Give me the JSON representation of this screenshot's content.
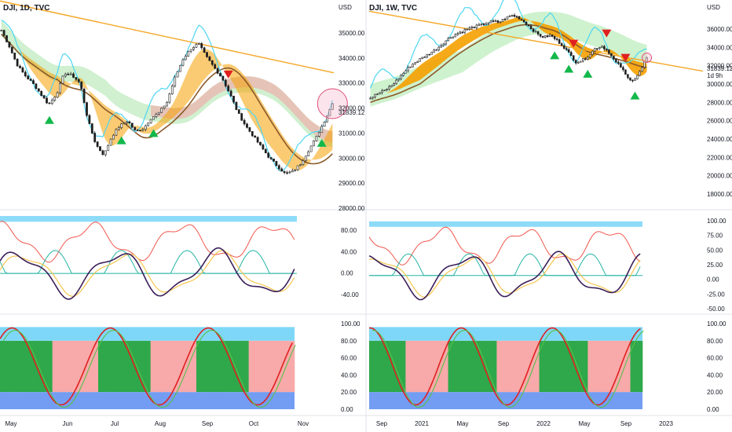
{
  "colors": {
    "bull": "#089981",
    "bear": "#d12a2a",
    "trend": "#f5a623",
    "ema_fast": "#f7a600",
    "ema_slow": "#8b5a2b",
    "cyan": "#4dd6f2",
    "cloud_green": "#9be59b",
    "cloud_red": "#f4a6a6",
    "rsi_red": "#f0574d",
    "macd_dark": "#3b1f5a",
    "macd_signal": "#f5c242",
    "zero": "#26b5a5",
    "band_blue": "#7fd7f7",
    "bg_green": "#2ea84a",
    "bg_pink": "#f8a9a9",
    "bg_blue": "#5b8cf0",
    "text": "#131722"
  },
  "left_chart": {
    "title": "DJI, 1D, TVC",
    "currency": "USD",
    "price_label": "31839.12",
    "y_ticks": [
      "35000.00",
      "34000.00",
      "33000.00",
      "32000.00",
      "31000.00",
      "30000.00",
      "29000.00",
      "28000.00"
    ],
    "x_ticks": [
      "May",
      "Jun",
      "Jul",
      "Aug",
      "Sep",
      "Oct",
      "Nov"
    ]
  },
  "right_chart": {
    "title": "DJI, 1W, TVC",
    "currency": "USD",
    "price_label": "31839.12",
    "timer_label": "1d 9h",
    "y_ticks": [
      "36000.00",
      "34000.00",
      "32000.00",
      "30000.00",
      "28000.00",
      "26000.00",
      "24000.00",
      "22000.00",
      "20000.00",
      "18000.00"
    ],
    "osc_ticks": [
      "100.00",
      "75.00",
      "50.00",
      "25.00",
      "0.00",
      "-25.00",
      "-50.00"
    ],
    "bottom_ticks": [
      "100.00",
      "80.00",
      "60.00",
      "40.00",
      "20.00",
      "0.00"
    ],
    "x_ticks": [
      "Sep",
      "2021",
      "May",
      "Sep",
      "2022",
      "May",
      "Sep",
      "2023"
    ]
  },
  "mid_left_ticks": [
    "80.00",
    "40.00",
    "0.00",
    "-40.00"
  ],
  "bottom_left_ticks": [
    "100.00",
    "80.00",
    "60.00",
    "40.00",
    "20.00",
    "0.00"
  ],
  "chart_data": [
    {
      "type": "candlestick",
      "title": "DJI, 1D, TVC",
      "ylim": [
        28000,
        35500
      ],
      "x_ticks": [
        "May",
        "Jun",
        "Jul",
        "Aug",
        "Sep",
        "Oct",
        "Nov"
      ],
      "close_path": [
        34600,
        34000,
        33300,
        32900,
        32600,
        32200,
        31800,
        32200,
        33000,
        32900,
        32600,
        31200,
        30300,
        29900,
        30600,
        31000,
        31200,
        30800,
        30900,
        31300,
        31500,
        31900,
        32800,
        33500,
        33900,
        34100,
        33600,
        33200,
        32800,
        32200,
        31500,
        31000,
        30600,
        30200,
        29800,
        29500,
        29200,
        29300,
        29600,
        30100,
        30600,
        31200,
        31839
      ],
      "last": 31839.12
    },
    {
      "type": "candlestick",
      "title": "DJI, 1W, TVC",
      "ylim": [
        17000,
        37000
      ],
      "x_ticks": [
        "Sep",
        "2021",
        "May",
        "Sep",
        "2022",
        "May",
        "Sep",
        "2023"
      ],
      "close_path": [
        27800,
        28200,
        28500,
        28900,
        29500,
        30200,
        30900,
        31400,
        31800,
        32200,
        32600,
        33100,
        33700,
        34100,
        34400,
        34700,
        34900,
        35100,
        35300,
        35500,
        35400,
        35800,
        36100,
        35900,
        35400,
        34800,
        34200,
        33900,
        34100,
        33600,
        33000,
        32200,
        31400,
        31600,
        32100,
        32800,
        33000,
        32500,
        31500,
        30900,
        29800,
        29600,
        30500,
        31839
      ],
      "last": 31839.12
    },
    {
      "type": "line",
      "name": "oscillator-left",
      "ylim": [
        -60,
        100
      ],
      "y_ticks": [
        80,
        40,
        0,
        -40
      ]
    },
    {
      "type": "line",
      "name": "oscillator-right",
      "ylim": [
        -60,
        110
      ],
      "y_ticks": [
        100,
        75,
        50,
        25,
        0,
        -25,
        -50
      ]
    }
  ]
}
